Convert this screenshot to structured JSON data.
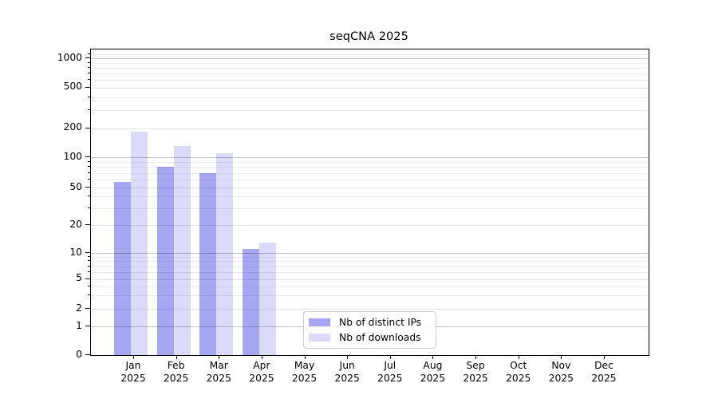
{
  "title": "seqCNA 2025",
  "chart_data": {
    "type": "bar",
    "title": "seqCNA 2025",
    "x_tick_labels_line1": [
      "Jan",
      "Feb",
      "Mar",
      "Apr",
      "May",
      "Jun",
      "Jul",
      "Aug",
      "Sep",
      "Oct",
      "Nov",
      "Dec"
    ],
    "x_tick_labels_line2": "2025",
    "series": [
      {
        "name": "Nb of distinct IPs",
        "color": "#a6a6f2",
        "values": [
          57,
          80,
          70,
          11,
          0,
          0,
          0,
          0,
          0,
          0,
          0,
          0
        ]
      },
      {
        "name": "Nb of downloads",
        "color": "#dbdbf9",
        "values": [
          185,
          130,
          110,
          13,
          0,
          0,
          0,
          0,
          0,
          0,
          0,
          0
        ]
      }
    ],
    "yscale": "symlog",
    "yticks": [
      0,
      1,
      2,
      5,
      10,
      20,
      50,
      100,
      200,
      500,
      1000
    ],
    "ylim": [
      0,
      1200
    ],
    "grid": true,
    "legend": {
      "position": "lower-center",
      "items": [
        "Nb of distinct IPs",
        "Nb of downloads"
      ]
    }
  },
  "colors": {
    "bar_distinct_ips": "#a6a6f2",
    "bar_downloads": "#dbdbf9",
    "grid_major": "#c2c2c2",
    "grid_minor": "#ebebeb",
    "axis": "#000000",
    "text": "#000000",
    "legend_border": "#cccccc",
    "background": "#ffffff"
  }
}
